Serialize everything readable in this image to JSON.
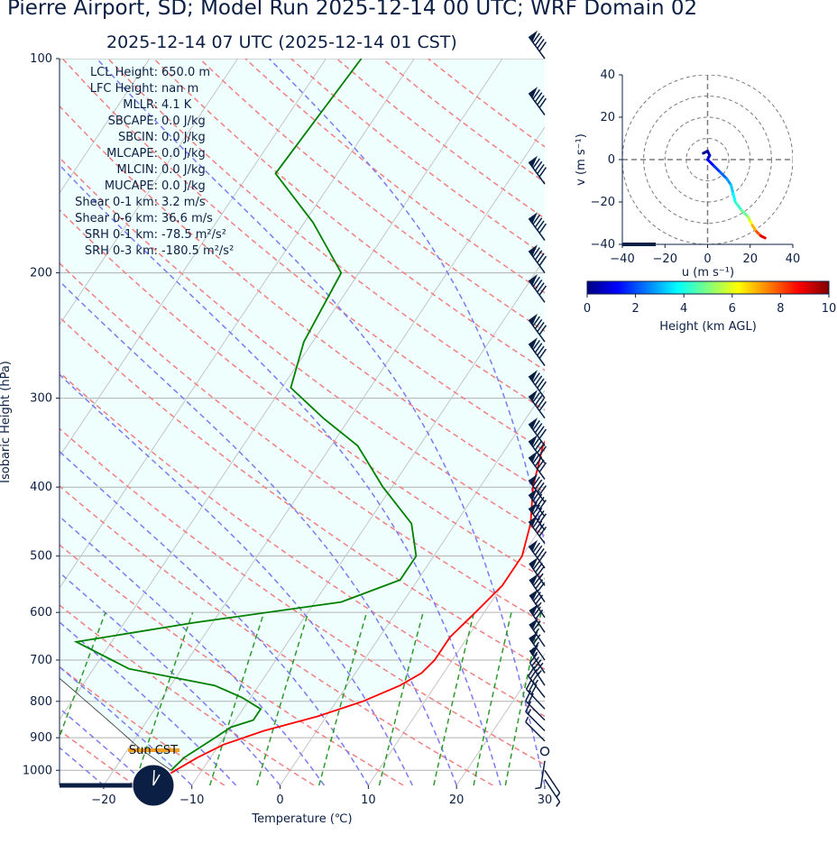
{
  "title": "Pierre Airport, SD; Model Run 2025-12-14 00 UTC; WRF Domain 02",
  "subtitle": "2025-12-14 07 UTC  (2025-12-14 01 CST)",
  "stats": [
    {
      "label": "LCL Height:",
      "value": "650.0 m"
    },
    {
      "label": "LFC Height:",
      "value": "nan m"
    },
    {
      "label": "MLLR:",
      "value": "4.1 K"
    },
    {
      "label": "SBCAPE:",
      "value": "0.0 J/kg"
    },
    {
      "label": "SBCIN:",
      "value": "0.0 J/kg"
    },
    {
      "label": "MLCAPE:",
      "value": "0.0 J/kg"
    },
    {
      "label": "MLCIN:",
      "value": "0.0 J/kg"
    },
    {
      "label": "MUCAPE:",
      "value": "0.0 J/kg"
    },
    {
      "label": "Shear 0-1 km:",
      "value": "3.2 m/s"
    },
    {
      "label": "Shear 0-6 km:",
      "value": "36.6 m/s"
    },
    {
      "label": "SRH 0-1 km:",
      "value": "-78.5 m²/s²"
    },
    {
      "label": "SRH 0-3 km:",
      "value": "-180.5 m²/s²"
    }
  ],
  "clock_label": "Sun CST",
  "colors": {
    "temperature": "#ff0000",
    "dewpoint": "#008000",
    "dry_adiabat": "#f08080",
    "moist_adiabat": "#7b7bf0",
    "mixing_ratio": "#2e9a2e",
    "shade": "#effffe",
    "text": "#0b1f44",
    "barb": "#0b1f44"
  },
  "chart_data": [
    {
      "type": "line",
      "subtype": "skew-T log-p",
      "xlabel": "Temperature (℃)",
      "ylabel": "Isobaric Height (hPa)",
      "xlim": [
        -25,
        30
      ],
      "ylim": [
        1050,
        100
      ],
      "xticks": [
        -20,
        -10,
        0,
        10,
        20,
        30
      ],
      "yticks": [
        100,
        200,
        300,
        400,
        500,
        600,
        700,
        800,
        900,
        1000
      ],
      "grid": true,
      "series": [
        {
          "name": "",
          "role": "temperature",
          "points": [
            {
              "p": 1030,
              "t": -14
            },
            {
              "p": 1000,
              "t": -13
            },
            {
              "p": 960,
              "t": -11.5
            },
            {
              "p": 920,
              "t": -9.5
            },
            {
              "p": 880,
              "t": -6
            },
            {
              "p": 840,
              "t": -1
            },
            {
              "p": 800,
              "t": 3
            },
            {
              "p": 760,
              "t": 6
            },
            {
              "p": 730,
              "t": 7.5
            },
            {
              "p": 700,
              "t": 8
            },
            {
              "p": 650,
              "t": 8
            },
            {
              "p": 600,
              "t": 9
            },
            {
              "p": 550,
              "t": 10
            },
            {
              "p": 500,
              "t": 10
            },
            {
              "p": 450,
              "t": 8.5
            },
            {
              "p": 400,
              "t": 6
            },
            {
              "p": 350,
              "t": 4
            },
            {
              "p": 300,
              "t": 3
            },
            {
              "p": 250,
              "t": 3
            },
            {
              "p": 215,
              "t": 4
            },
            {
              "p": 190,
              "t": 6
            },
            {
              "p": 160,
              "t": 12
            },
            {
              "p": 130,
              "t": 25
            },
            {
              "p": 100,
              "t": 40
            }
          ]
        },
        {
          "name": "",
          "role": "dewpoint",
          "points": [
            {
              "p": 1000,
              "t": -13.5
            },
            {
              "p": 960,
              "t": -13
            },
            {
              "p": 930,
              "t": -12
            },
            {
              "p": 900,
              "t": -11
            },
            {
              "p": 870,
              "t": -10
            },
            {
              "p": 850,
              "t": -8
            },
            {
              "p": 820,
              "t": -8
            },
            {
              "p": 790,
              "t": -11
            },
            {
              "p": 760,
              "t": -15
            },
            {
              "p": 720,
              "t": -26
            },
            {
              "p": 660,
              "t": -34
            },
            {
              "p": 620,
              "t": -22
            },
            {
              "p": 580,
              "t": -7
            },
            {
              "p": 540,
              "t": -2
            },
            {
              "p": 500,
              "t": -2
            },
            {
              "p": 450,
              "t": -5
            },
            {
              "p": 400,
              "t": -11
            },
            {
              "p": 350,
              "t": -17
            },
            {
              "p": 320,
              "t": -23
            },
            {
              "p": 290,
              "t": -29
            },
            {
              "p": 250,
              "t": -31
            },
            {
              "p": 200,
              "t": -32
            },
            {
              "p": 170,
              "t": -39
            },
            {
              "p": 145,
              "t": -47
            },
            {
              "p": 100,
              "t": -46
            }
          ]
        }
      ],
      "parcel_shading": "pale cyan between parcel path and sounding",
      "wind_barbs_column": "right edge, 100-1030 hPa"
    },
    {
      "type": "line",
      "subtype": "hodograph",
      "xlabel": "u (m s$^{-1}$)",
      "ylabel": "v (m s$^{-1}$)",
      "xlim": [
        -40,
        40
      ],
      "ylim": [
        -40,
        40
      ],
      "xticks": [
        -40,
        -20,
        0,
        20,
        40
      ],
      "yticks": [
        -40,
        -20,
        0,
        20,
        40
      ],
      "rings": [
        10,
        20,
        30,
        40
      ],
      "points": [
        {
          "u": -2,
          "v": 3,
          "h": 0
        },
        {
          "u": 0,
          "v": 4,
          "h": 0.3
        },
        {
          "u": 1,
          "v": 2,
          "h": 0.6
        },
        {
          "u": 0,
          "v": 0,
          "h": 1
        },
        {
          "u": 3,
          "v": -3,
          "h": 1.5
        },
        {
          "u": 6,
          "v": -6,
          "h": 2
        },
        {
          "u": 9,
          "v": -9,
          "h": 2.5
        },
        {
          "u": 11,
          "v": -12,
          "h": 3
        },
        {
          "u": 12,
          "v": -16,
          "h": 3.5
        },
        {
          "u": 13,
          "v": -20,
          "h": 4
        },
        {
          "u": 16,
          "v": -24,
          "h": 4.5
        },
        {
          "u": 19,
          "v": -27,
          "h": 5
        },
        {
          "u": 20,
          "v": -29,
          "h": 6
        },
        {
          "u": 21,
          "v": -31,
          "h": 6.5
        },
        {
          "u": 23,
          "v": -34,
          "h": 7.5
        },
        {
          "u": 25,
          "v": -36,
          "h": 8.5
        },
        {
          "u": 27,
          "v": -37,
          "h": 9.5
        }
      ]
    },
    {
      "type": "colorbar",
      "label": "Height (km AGL)",
      "range": [
        0,
        10
      ],
      "ticks": [
        0,
        2,
        4,
        6,
        8,
        10
      ],
      "colormap": "jet"
    }
  ]
}
